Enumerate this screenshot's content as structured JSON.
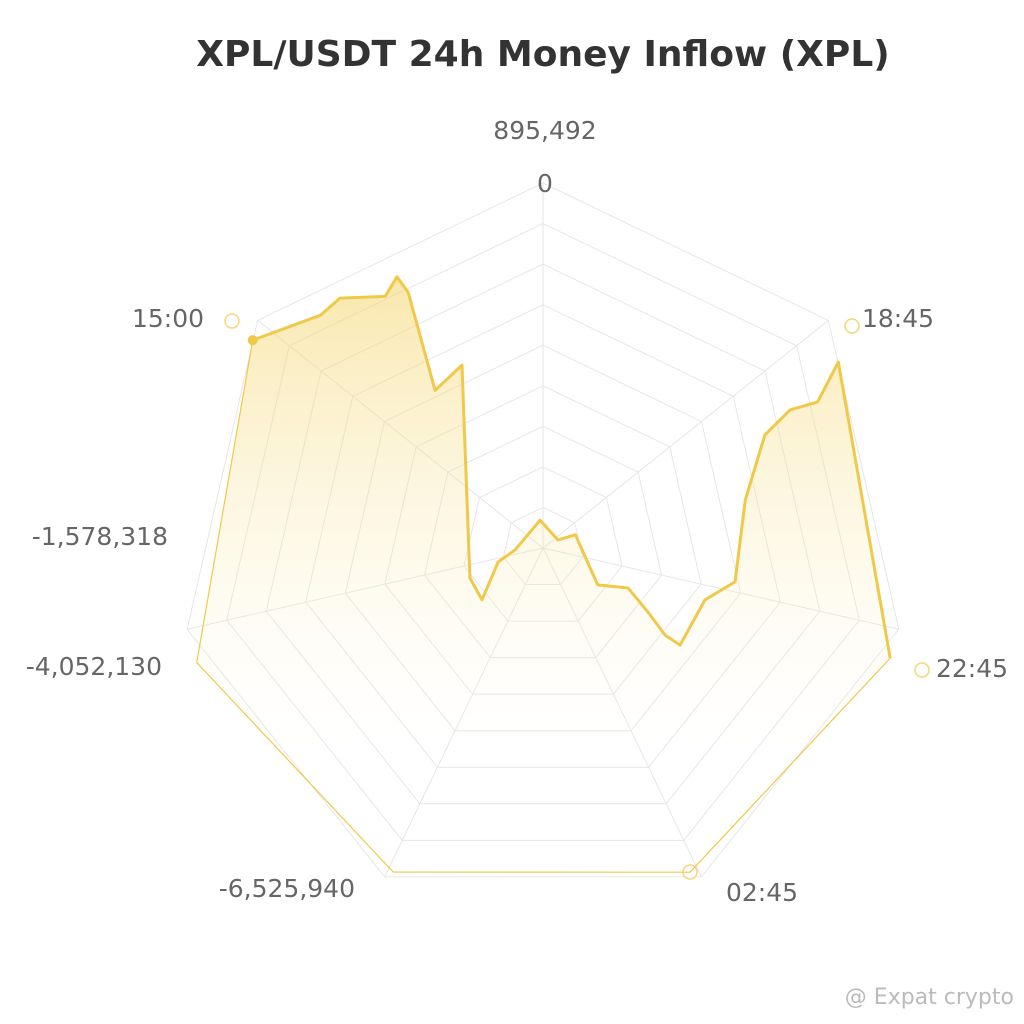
{
  "chart_data": {
    "type": "polar_area",
    "title": "XPL/USDT 24h Money Inflow (XPL)",
    "rlim": [
      -6525940,
      895492
    ],
    "rticks": [
      {
        "value": 895492,
        "label": "895,492"
      },
      0,
      {
        "value": -1578318,
        "label": "-1,578,318"
      },
      {
        "value": -4052130,
        "label": "-4,052,130"
      },
      {
        "value": -6525940,
        "label": "-6,525,940"
      }
    ],
    "theta_labels": [
      "15:00",
      "18:45",
      "22:45",
      "02:45"
    ],
    "series": [
      {
        "color": "#f0c94a",
        "theta": [
          305.6,
          316.3,
          320.9,
          327.9,
          331.7,
          332.2,
          325.6,
          336.1,
          247.7,
          229.6,
          252.7,
          266,
          354,
          61.9,
          67.9,
          124,
          115.2,
          121.4,
          125.5,
          125.3,
          107.8,
          100,
          76.6,
          63,
          60.8,
          62,
          57.8,
          107.6,
          155.6,
          204.8,
          251.7
        ],
        "values": [
          732800,
          21200,
          21200,
          -487100,
          -263500,
          -649800,
          -2642400,
          -2459400,
          -4919700,
          -4899300,
          -5570300,
          -5956600,
          -5956600,
          -6180300,
          -5814300,
          -5184000,
          -4614700,
          -4025000,
          -3476000,
          -3110000,
          -3069400,
          -2561100,
          -2296700,
          -1463100,
          -771800,
          -202500,
          570200,
          880000,
          712500,
          732800,
          890000
        ]
      }
    ],
    "watermark": "@ Expat crypto"
  }
}
